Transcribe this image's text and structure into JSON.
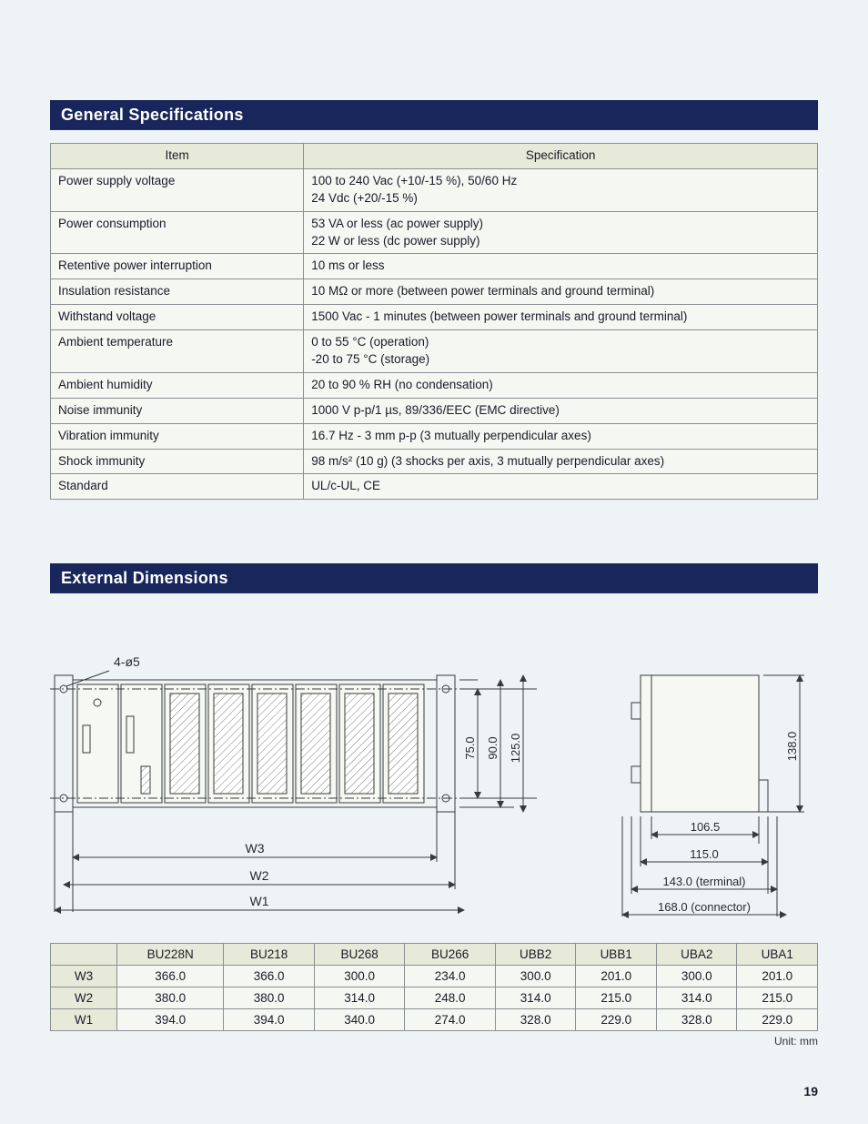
{
  "headers": {
    "general": "General Specifications",
    "external": "External Dimensions"
  },
  "spec_table": {
    "columns": [
      "Item",
      "Specification"
    ],
    "rows": [
      [
        "Power supply voltage",
        "100 to 240 Vac (+10/-15 %), 50/60 Hz\n24 Vdc (+20/-15 %)"
      ],
      [
        "Power consumption",
        "53 VA or less (ac power supply)\n22 W or less (dc power supply)"
      ],
      [
        "Retentive power interruption",
        "10 ms or less"
      ],
      [
        "Insulation resistance",
        "10 MΩ or more (between power terminals and ground terminal)"
      ],
      [
        "Withstand voltage",
        "1500 Vac - 1 minutes (between power terminals and ground terminal)"
      ],
      [
        "Ambient temperature",
        "0 to 55 °C (operation)\n-20 to 75 °C (storage)"
      ],
      [
        "Ambient humidity",
        "20 to 90 % RH (no condensation)"
      ],
      [
        "Noise immunity",
        "1000 V p-p/1 µs, 89/336/EEC (EMC directive)"
      ],
      [
        "Vibration immunity",
        "16.7 Hz - 3 mm p-p (3 mutually perpendicular axes)"
      ],
      [
        "Shock immunity",
        "98 m/s² (10 g) (3 shocks per axis, 3 mutually perpendicular axes)"
      ],
      [
        "Standard",
        "UL/c-UL, CE"
      ]
    ]
  },
  "diagram_front": {
    "hole_label": "4-ø5",
    "width_labels": [
      "W3",
      "W2",
      "W1"
    ],
    "height_dims": [
      "75.0",
      "90.0",
      "125.0"
    ]
  },
  "diagram_side": {
    "height": "138.0",
    "depth_labels": [
      "106.5",
      "115.0",
      "143.0 (terminal)",
      "168.0 (connector)"
    ]
  },
  "dims_table": {
    "columns": [
      "",
      "BU228N",
      "BU218",
      "BU268",
      "BU266",
      "UBB2",
      "UBB1",
      "UBA2",
      "UBA1"
    ],
    "rows": [
      [
        "W3",
        "366.0",
        "366.0",
        "300.0",
        "234.0",
        "300.0",
        "201.0",
        "300.0",
        "201.0"
      ],
      [
        "W2",
        "380.0",
        "380.0",
        "314.0",
        "248.0",
        "314.0",
        "215.0",
        "314.0",
        "215.0"
      ],
      [
        "W1",
        "394.0",
        "394.0",
        "340.0",
        "274.0",
        "328.0",
        "229.0",
        "328.0",
        "229.0"
      ]
    ]
  },
  "unit_note": "Unit: mm",
  "page_number": "19",
  "colors": {
    "header_bg": "#19265b",
    "header_fg": "#ffffff",
    "table_border": "#8a8f92",
    "table_header_bg": "#e7ead8",
    "table_body_bg": "#f5f7f2",
    "page_bg": "#eef4f6",
    "stroke": "#3a3a3a",
    "hatch": "#7a7a7a"
  }
}
